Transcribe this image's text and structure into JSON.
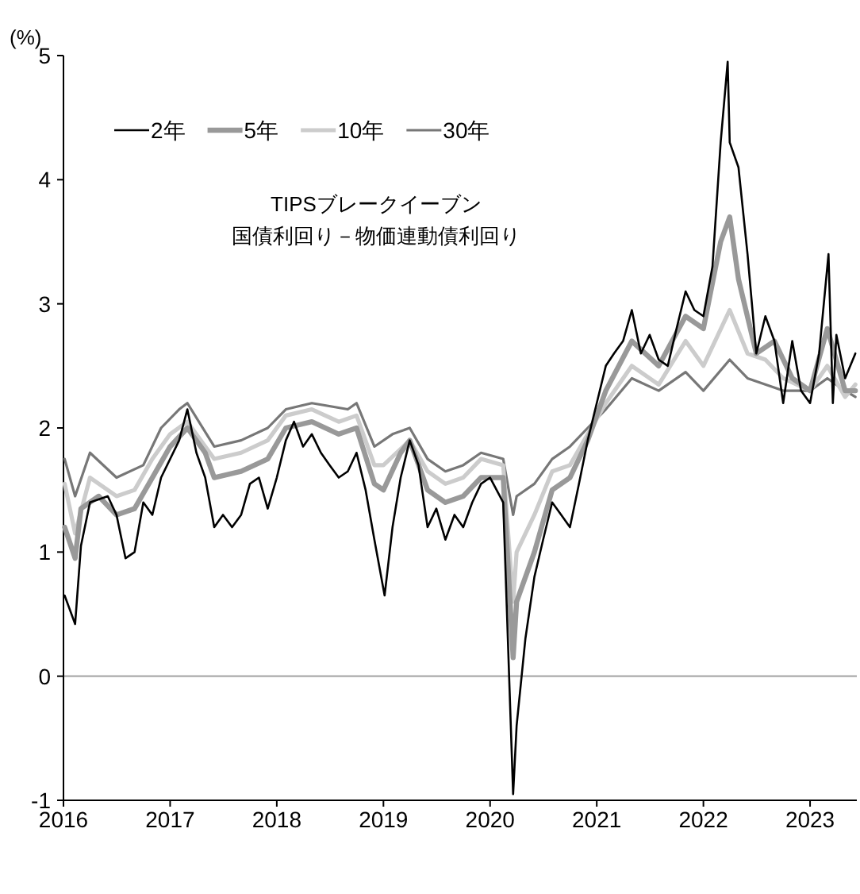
{
  "chart_data": {
    "type": "line",
    "title": "TIPSブレークイーブン",
    "subtitle": "国債利回り－物価連動債利回り",
    "ylabel": "(%)",
    "xlim": [
      "2016-01-01",
      "2023-06-10"
    ],
    "xticks": [
      {
        "value": "2016",
        "label": "2016"
      },
      {
        "value": "2017",
        "label": "2017"
      },
      {
        "value": "2018",
        "label": "2018"
      },
      {
        "value": "2019",
        "label": "2019"
      },
      {
        "value": "2020",
        "label": "2020"
      },
      {
        "value": "2021",
        "label": "2021"
      },
      {
        "value": "2022",
        "label": "2022"
      },
      {
        "value": "2023",
        "label": "2023"
      }
    ],
    "ylim": [
      -1,
      5
    ],
    "yticks": [
      -1,
      0,
      1,
      2,
      3,
      4,
      5
    ],
    "grid": false,
    "legend": "top left",
    "marker": "none",
    "line_style": "solid",
    "ref_lines": [
      {
        "axis": "y",
        "value": 0,
        "label": null,
        "color": "#aaaaaa"
      }
    ],
    "series": [
      {
        "name": "2年",
        "color": "#000000",
        "x": [
          "2016-01-05",
          "2016-02-10",
          "2016-03-01",
          "2016-04-01",
          "2016-06-01",
          "2016-07-01",
          "2016-08-01",
          "2016-09-01",
          "2016-10-01",
          "2016-11-01",
          "2016-12-01",
          "2017-02-01",
          "2017-03-01",
          "2017-04-01",
          "2017-05-01",
          "2017-06-01",
          "2017-07-01",
          "2017-08-01",
          "2017-09-01",
          "2017-10-01",
          "2017-11-01",
          "2017-12-01",
          "2018-01-01",
          "2018-02-01",
          "2018-03-01",
          "2018-04-01",
          "2018-05-01",
          "2018-06-01",
          "2018-07-01",
          "2018-08-01",
          "2018-09-01",
          "2018-10-01",
          "2018-11-01",
          "2018-12-01",
          "2019-01-05",
          "2019-02-01",
          "2019-03-01",
          "2019-04-01",
          "2019-05-01",
          "2019-06-01",
          "2019-07-01",
          "2019-08-01",
          "2019-09-01",
          "2019-10-01",
          "2019-11-01",
          "2019-12-01",
          "2020-01-01",
          "2020-02-15",
          "2020-03-20",
          "2020-04-01",
          "2020-05-01",
          "2020-06-01",
          "2020-07-01",
          "2020-08-01",
          "2020-09-01",
          "2020-10-01",
          "2020-11-01",
          "2020-12-01",
          "2021-01-01",
          "2021-02-01",
          "2021-03-01",
          "2021-04-01",
          "2021-05-01",
          "2021-06-01",
          "2021-07-01",
          "2021-08-01",
          "2021-09-01",
          "2021-10-01",
          "2021-11-01",
          "2021-12-01",
          "2022-01-01",
          "2022-02-01",
          "2022-03-01",
          "2022-03-25",
          "2022-04-01",
          "2022-05-01",
          "2022-06-01",
          "2022-07-01",
          "2022-08-01",
          "2022-09-01",
          "2022-10-01",
          "2022-11-01",
          "2022-12-01",
          "2023-01-01",
          "2023-02-01",
          "2023-03-05",
          "2023-03-20",
          "2023-04-01",
          "2023-05-01",
          "2023-06-05"
        ],
        "values": [
          0.65,
          0.42,
          1.05,
          1.4,
          1.45,
          1.3,
          0.95,
          1.0,
          1.4,
          1.3,
          1.6,
          1.9,
          2.15,
          1.8,
          1.6,
          1.2,
          1.3,
          1.2,
          1.3,
          1.55,
          1.6,
          1.35,
          1.6,
          1.9,
          2.05,
          1.85,
          1.95,
          1.8,
          1.7,
          1.6,
          1.65,
          1.8,
          1.5,
          1.1,
          0.65,
          1.2,
          1.6,
          1.9,
          1.7,
          1.2,
          1.35,
          1.1,
          1.3,
          1.2,
          1.4,
          1.55,
          1.6,
          1.4,
          -0.95,
          -0.4,
          0.3,
          0.8,
          1.1,
          1.4,
          1.3,
          1.2,
          1.55,
          1.9,
          2.2,
          2.5,
          2.6,
          2.7,
          2.95,
          2.6,
          2.75,
          2.55,
          2.5,
          2.8,
          3.1,
          2.95,
          2.9,
          3.3,
          4.3,
          4.95,
          4.3,
          4.1,
          3.4,
          2.6,
          2.9,
          2.7,
          2.2,
          2.7,
          2.3,
          2.2,
          2.6,
          3.4,
          2.2,
          2.75,
          2.4,
          2.6
        ]
      },
      {
        "name": "5年",
        "color": "#999999",
        "x": [
          "2016-01-05",
          "2016-02-10",
          "2016-03-01",
          "2016-05-01",
          "2016-07-01",
          "2016-09-01",
          "2016-11-01",
          "2017-01-01",
          "2017-03-01",
          "2017-05-01",
          "2017-06-01",
          "2017-09-01",
          "2017-12-01",
          "2018-02-01",
          "2018-05-01",
          "2018-08-01",
          "2018-10-01",
          "2018-12-01",
          "2019-01-01",
          "2019-03-01",
          "2019-04-01",
          "2019-06-01",
          "2019-08-01",
          "2019-10-01",
          "2019-12-01",
          "2020-02-15",
          "2020-03-20",
          "2020-04-01",
          "2020-06-01",
          "2020-08-01",
          "2020-10-01",
          "2020-12-01",
          "2021-02-01",
          "2021-05-01",
          "2021-08-01",
          "2021-11-01",
          "2022-01-01",
          "2022-03-01",
          "2022-04-01",
          "2022-05-01",
          "2022-07-01",
          "2022-09-01",
          "2022-11-01",
          "2023-01-01",
          "2023-03-01",
          "2023-05-01",
          "2023-06-05"
        ],
        "values": [
          1.2,
          0.95,
          1.35,
          1.45,
          1.3,
          1.35,
          1.6,
          1.85,
          2.0,
          1.8,
          1.6,
          1.65,
          1.75,
          2.0,
          2.05,
          1.95,
          2.0,
          1.55,
          1.5,
          1.8,
          1.9,
          1.5,
          1.4,
          1.45,
          1.6,
          1.6,
          0.15,
          0.6,
          1.0,
          1.5,
          1.6,
          1.9,
          2.3,
          2.7,
          2.5,
          2.9,
          2.8,
          3.5,
          3.7,
          3.2,
          2.6,
          2.7,
          2.4,
          2.3,
          2.8,
          2.3,
          2.3
        ]
      },
      {
        "name": "10年",
        "color": "#cccccc",
        "x": [
          "2016-01-05",
          "2016-02-10",
          "2016-04-01",
          "2016-07-01",
          "2016-09-01",
          "2016-11-01",
          "2017-01-01",
          "2017-03-01",
          "2017-06-01",
          "2017-09-01",
          "2017-12-01",
          "2018-02-01",
          "2018-05-01",
          "2018-08-01",
          "2018-10-01",
          "2018-12-01",
          "2019-01-01",
          "2019-04-01",
          "2019-06-01",
          "2019-08-01",
          "2019-10-01",
          "2019-12-01",
          "2020-02-15",
          "2020-03-20",
          "2020-04-01",
          "2020-06-01",
          "2020-08-01",
          "2020-10-01",
          "2020-12-01",
          "2021-02-01",
          "2021-05-01",
          "2021-08-01",
          "2021-11-01",
          "2022-01-01",
          "2022-04-01",
          "2022-06-01",
          "2022-08-01",
          "2022-10-01",
          "2023-01-01",
          "2023-03-01",
          "2023-05-01",
          "2023-06-05"
        ],
        "values": [
          1.55,
          1.15,
          1.6,
          1.45,
          1.5,
          1.75,
          1.95,
          2.05,
          1.75,
          1.8,
          1.9,
          2.1,
          2.15,
          2.05,
          2.1,
          1.7,
          1.7,
          1.9,
          1.65,
          1.55,
          1.6,
          1.75,
          1.7,
          0.6,
          1.0,
          1.3,
          1.65,
          1.7,
          1.95,
          2.2,
          2.5,
          2.35,
          2.7,
          2.5,
          2.95,
          2.6,
          2.55,
          2.4,
          2.3,
          2.5,
          2.25,
          2.35
        ]
      },
      {
        "name": "30年",
        "color": "#777777",
        "x": [
          "2016-01-05",
          "2016-02-10",
          "2016-04-01",
          "2016-07-01",
          "2016-10-01",
          "2016-12-01",
          "2017-02-01",
          "2017-03-01",
          "2017-06-01",
          "2017-09-01",
          "2017-12-01",
          "2018-02-01",
          "2018-05-01",
          "2018-09-01",
          "2018-10-01",
          "2018-12-01",
          "2019-02-01",
          "2019-04-01",
          "2019-06-01",
          "2019-08-01",
          "2019-10-01",
          "2019-12-01",
          "2020-02-15",
          "2020-03-20",
          "2020-04-01",
          "2020-06-01",
          "2020-08-01",
          "2020-10-01",
          "2020-12-01",
          "2021-02-01",
          "2021-05-01",
          "2021-08-01",
          "2021-11-01",
          "2022-01-01",
          "2022-04-01",
          "2022-06-01",
          "2022-08-01",
          "2022-10-01",
          "2023-01-01",
          "2023-03-01",
          "2023-05-01",
          "2023-06-05"
        ],
        "values": [
          1.75,
          1.45,
          1.8,
          1.6,
          1.7,
          2.0,
          2.15,
          2.2,
          1.85,
          1.9,
          2.0,
          2.15,
          2.2,
          2.15,
          2.2,
          1.85,
          1.95,
          2.0,
          1.75,
          1.65,
          1.7,
          1.8,
          1.75,
          1.3,
          1.45,
          1.55,
          1.75,
          1.85,
          2.0,
          2.15,
          2.4,
          2.3,
          2.45,
          2.3,
          2.55,
          2.4,
          2.35,
          2.3,
          2.3,
          2.4,
          2.3,
          2.25
        ]
      }
    ]
  }
}
